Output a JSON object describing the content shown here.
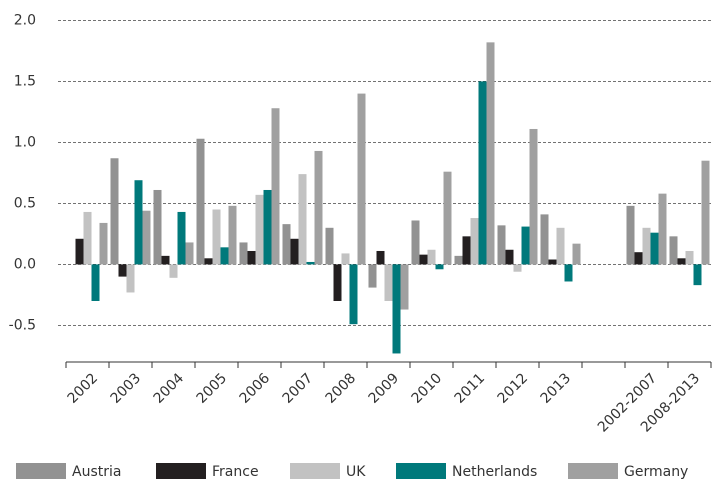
{
  "chart_data": {
    "type": "bar",
    "categories": [
      "2002",
      "2003",
      "2004",
      "2005",
      "2006",
      "2007",
      "2008",
      "2009",
      "2010",
      "2011",
      "2012",
      "2013",
      null,
      "2002-2007",
      "2008-2013"
    ],
    "series": [
      {
        "name": "Austria",
        "color": "#929292",
        "values": [
          0,
          0.87,
          0.61,
          1.03,
          0.18,
          0.33,
          0.3,
          -0.19,
          0.36,
          0.07,
          0.32,
          0.41,
          null,
          0.48,
          0.23
        ]
      },
      {
        "name": "France",
        "color": "#231f20",
        "values": [
          0.21,
          -0.1,
          0.07,
          0.05,
          0.11,
          0.21,
          -0.3,
          0.11,
          0.08,
          0.23,
          0.12,
          0.04,
          null,
          0.1,
          0.05
        ]
      },
      {
        "name": "UK",
        "color": "#c2c2c2",
        "values": [
          0.43,
          -0.23,
          -0.11,
          0.45,
          0.57,
          0.74,
          0.09,
          -0.3,
          0.12,
          0.38,
          -0.06,
          0.3,
          null,
          0.3,
          0.11
        ]
      },
      {
        "name": "Netherlands",
        "color": "#00797b",
        "values": [
          -0.3,
          0.69,
          0.43,
          0.14,
          0.61,
          0.02,
          -0.49,
          -0.73,
          -0.04,
          1.5,
          0.31,
          -0.14,
          null,
          0.26,
          -0.17
        ]
      },
      {
        "name": "Germany",
        "color": "#a0a0a0",
        "values": [
          0.34,
          0.44,
          0.18,
          0.48,
          1.28,
          0.93,
          1.4,
          -0.37,
          0.76,
          1.82,
          1.11,
          0.17,
          null,
          0.58,
          0.85
        ]
      }
    ],
    "ylim": [
      -0.8,
      2.0
    ],
    "yticks": [
      {
        "value": 2.0,
        "label": "2.0"
      },
      1.5,
      {
        "value": 1.0,
        "label": "1.0"
      },
      0.5,
      {
        "value": 0,
        "label": "0.0"
      },
      -0.5
    ],
    "grid": true,
    "legend": "bottom"
  }
}
